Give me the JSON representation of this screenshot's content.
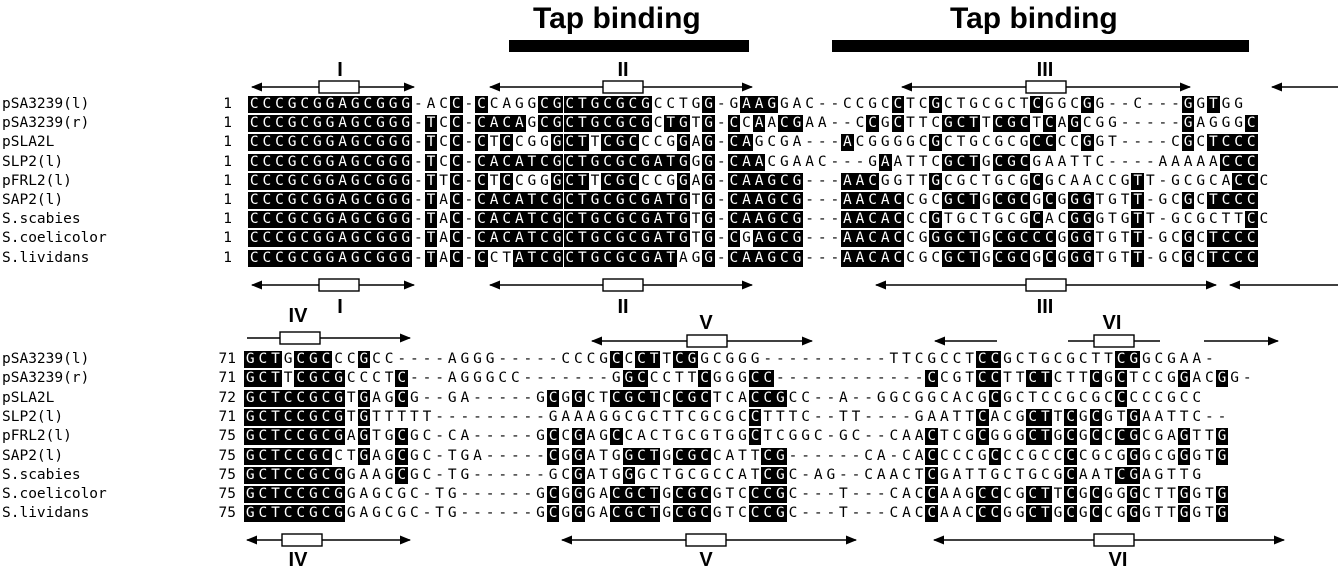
{
  "tap_binding": {
    "label_1": "Tap binding",
    "label_2": "Tap binding"
  },
  "block1": {
    "rows": [
      {
        "name": "pSA3239(l)",
        "start": "1",
        "seq": "CCCGCGGAGCGGG-ACC-CCAGGCGCTGCGCGCCTGG-GAAGGAC--CCGCCTCGCTGCGCTCGGCGG--C---GGTGG"
      },
      {
        "name": "pSA3239(r)",
        "start": "1",
        "seq": "CCCGCGGAGCGGG-TCC-CACAGCGCTGCGCGCTGTG-CCAACGAA--CCGCTTCGCTTCGCTCAGCGG-----GAGGGC"
      },
      {
        "name": "pSLA2L",
        "start": "1",
        "seq": "CCCGCGGAGCGGG-TCC-CTCCGGGCTTCGCCCGGAG-CAGCGA---ACGGGGCGCTGCGCGCCCCGGT----CGCTCCC"
      },
      {
        "name": "SLP2(l)",
        "start": "1",
        "seq": "CCCGCGGAGCGGG-TCC-CACATCGCTGCGCGATGGG-CAACGAAC---GAATTCGCTGCGCGAATTC----AAAAACCC"
      },
      {
        "name": "pFRL2(l)",
        "start": "1",
        "seq": "CCCGCGGAGCGGG-TTC-CTCCGGGCTTCGCCCGGAG-CAAGCG---AACGGTTGCGCTGCGCGCAACCGTT-GCGCACCC"
      },
      {
        "name": "SAP2(l)",
        "start": "1",
        "seq": "CCCGCGGAGCGGG-TAC-CACATCGCTGCGCGATGTG-CAAGCG---AACACCGCGCTGCGCGCGGGTGTT-GCGCTCCC"
      },
      {
        "name": "S.scabies",
        "start": "1",
        "seq": "CCCGCGGAGCGGG-TAC-CACATCGCTGCGCGATGTG-CAAGCG---AACACCCGTGCTGCGCACGGGTGTT-GCGCTTCC"
      },
      {
        "name": "S.coelicolor",
        "start": "1",
        "seq": "CCCGCGGAGCGGG-TAC-CACATCGCTGCGCGATGTG-CGAGCG---AACACCGGGCTGCGCCCGGGTGTT-GCGCTCCC"
      },
      {
        "name": "S.lividans",
        "start": "1",
        "seq": "CCCGCGGAGCGGG-TAC-CCTATCGCTGCGCGATAGG-CAAGCG---AACACCGCGCTGCGCGCGGGTGTT-GCGCTCCC"
      }
    ]
  },
  "block2": {
    "rows": [
      {
        "name": "pSA3239(l)",
        "start": "71",
        "seq": "GCTGCGCCCGCC----AGGG-----CCCGCCCTTCGGCGGG----------TTCGCCTCCGCTGCGCTTCGGCGAA-"
      },
      {
        "name": "pSA3239(r)",
        "start": "71",
        "seq": "GCTTCGCGCCCTC---AGGGCC-------GGCCCTTCGGGCC------------CCGTCCTTCTCTTCGCTCCGGACGG-"
      },
      {
        "name": "pSLA2L",
        "start": "72",
        "seq": "GCTCCGCGTGAGCG--GA-----GCGGCTCGCTCCGCTCACCGCC--A--GGCGGCACGCGCTCCGCGCCCCCGCC"
      },
      {
        "name": "SLP2(l)",
        "start": "71",
        "seq": "GCTCCGCGTGTTTTT---------GAAAGGCGCTTCGCGCCTTTC--TT----GAATTCACGCTTCGCGTGAATTC--"
      },
      {
        "name": "pFRL2(l)",
        "start": "75",
        "seq": "GCTCCGCGAGTGCGC-CA-----GCCGAGCCACTGCGTGGCTCGGC-GC--CAACTCGCGGGCTGCGCCCGCGAGTTG"
      },
      {
        "name": "SAP2(l)",
        "start": "75",
        "seq": "GCTCCGCCTGAGCGC-TGA-----CGGATGGCTGCGCCATTCG------CA-CACCCCGCCCGCCCCGCGGGCGGGTG"
      },
      {
        "name": "S.scabies",
        "start": "75",
        "seq": "GCTCCGCGGAAGCGC-TG------GCGATGGGCTGCGCCATCGC-AG--CAACTCGATTGCTGCGCAATCGAGTTG"
      },
      {
        "name": "S.coelicolor",
        "start": "75",
        "seq": "GCTCCGCGGAGCGC-TG------GCGGGACGCTGCGCGTCCCGC---T---CACCAAGCCCGCTTCGCGGGCTTGGTG"
      },
      {
        "name": "S.lividans",
        "start": "75",
        "seq": "GCTCCGCGGAGCGC-TG------GCGGGACGCTGCGCGTCCCGC---T---CACCAACCCGGCTGCGCCGGGTTGGTG"
      }
    ]
  },
  "regions": {
    "I_top": "I",
    "II_top": "II",
    "III_top": "III",
    "I_bottom": "I",
    "II_bottom": "II",
    "III_bottom": "III",
    "IV_top": "IV",
    "V_top": "V",
    "VI_top": "VI",
    "IV_bottom": "IV",
    "V_bottom": "V",
    "VI_bottom": "VI"
  },
  "colors": {
    "highlight": "#000000",
    "text": "#000000",
    "background": "#ffffff"
  }
}
